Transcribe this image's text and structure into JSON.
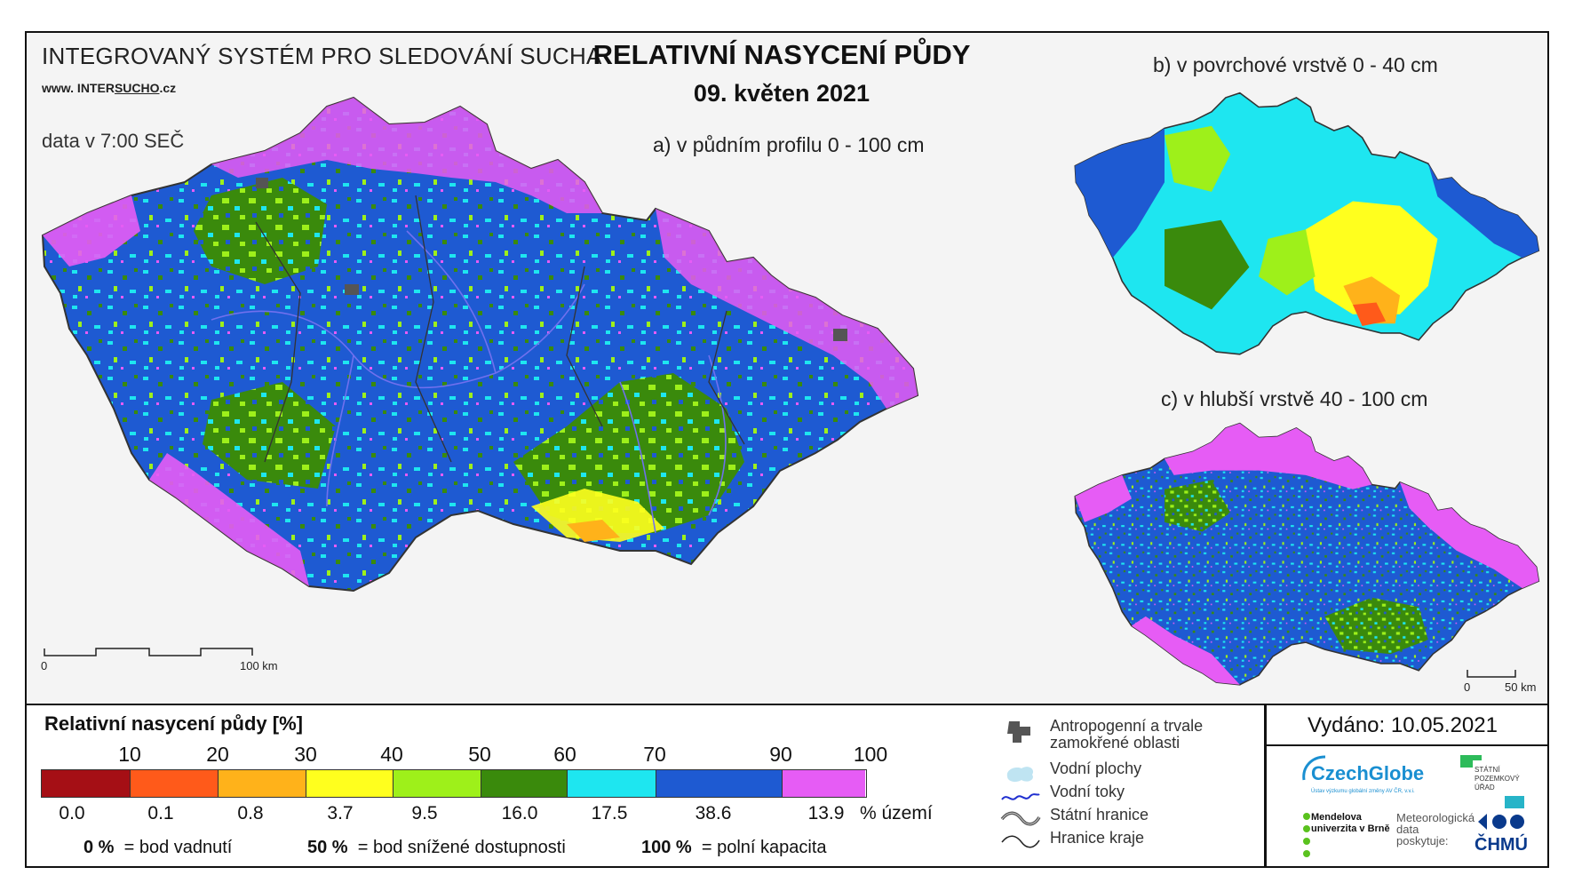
{
  "system_title": "INTEGROVANÝ SYSTÉM PRO SLEDOVÁNÍ SUCHA",
  "system_url_prefix": "www. INTER",
  "system_url_underlined": "SUCHO",
  "system_url_suffix": ".cz",
  "data_time": "data v 7:00 SEČ",
  "main_title": "RELATIVNÍ NASYCENÍ PŮDY",
  "main_date": "09. květen 2021",
  "map_a_label": "a) v půdním profilu 0 - 100 cm",
  "map_b_label": "b) v povrchové vrstvě 0 - 40 cm",
  "map_c_label": "c) v hlubší vrstvě 40 - 100 cm",
  "scale_a": {
    "start": "0",
    "end": "100 km"
  },
  "scale_c": {
    "start": "0",
    "end": "50 km"
  },
  "legend": {
    "title": "Relativní nasycení půdy [%]",
    "thresholds": [
      "10",
      "20",
      "30",
      "40",
      "50",
      "60",
      "70",
      "90",
      "100"
    ],
    "classes": [
      {
        "color": "#a50f15",
        "area_pct": "0.0"
      },
      {
        "color": "#ff5a1a",
        "area_pct": "0.1"
      },
      {
        "color": "#ffb21a",
        "area_pct": "0.8"
      },
      {
        "color": "#ffff1e",
        "area_pct": "3.7"
      },
      {
        "color": "#9ef01a",
        "area_pct": "9.5"
      },
      {
        "color": "#3a8a0c",
        "area_pct": "16.0"
      },
      {
        "color": "#1ee6f0",
        "area_pct": "17.5"
      },
      {
        "color": "#1e5ad2",
        "area_pct": "38.6"
      },
      {
        "color": "#e65cf5",
        "area_pct": "13.9"
      }
    ],
    "area_unit": "% území",
    "definitions": [
      {
        "value": "0 %",
        "text": "= bod vadnutí"
      },
      {
        "value": "50 %",
        "text": "= bod snížené dostupnosti"
      },
      {
        "value": "100 %",
        "text": "= polní kapacita"
      }
    ]
  },
  "symbology": [
    {
      "icon": "anthropogenic-area-icon",
      "label": "Antropogenní a trvale zamokřené oblasti"
    },
    {
      "icon": "water-body-icon",
      "label": "Vodní plochy"
    },
    {
      "icon": "river-icon",
      "label": "Vodní toky"
    },
    {
      "icon": "state-border-icon",
      "label": "Státní hranice"
    },
    {
      "icon": "region-border-icon",
      "label": "Hranice kraje"
    }
  ],
  "issued": "Vydáno: 10.05.2021",
  "logos": {
    "czechglobe": "CzechGlobe",
    "czechglobe_sub": "Ústav výzkumu globální změny AV ČR, v.v.i.",
    "spu": "STÁTNÍ POZEMKOVÝ ÚŘAD",
    "mendel": "Mendelova univerzita v Brně",
    "meteo": "Meteorologická data poskytuje:",
    "chmu": "ČHMÚ"
  }
}
